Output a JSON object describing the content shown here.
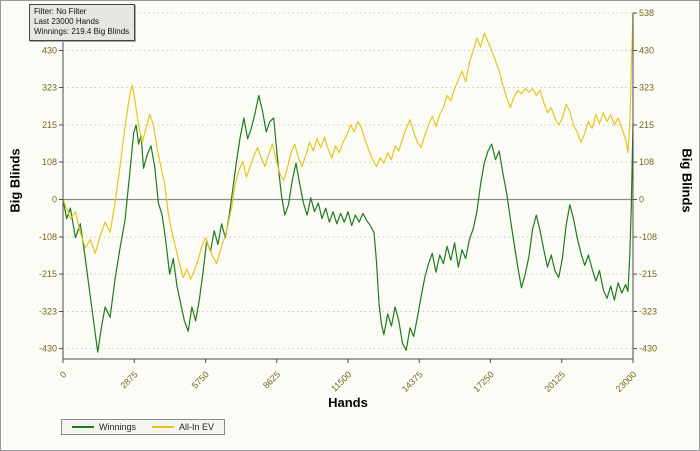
{
  "info_box": {
    "line1": "Filter: No Filter",
    "line2": "Last 23000 Hands",
    "line3": "Winnings: 219.4 Big Blinds"
  },
  "axes": {
    "left_title": "Big Blinds",
    "right_title": "Big Blinds",
    "x_title": "Hands"
  },
  "legend": {
    "items": [
      {
        "label": "Winnings",
        "color": "#1f7a1f"
      },
      {
        "label": "All-In EV",
        "color": "#e8c51d"
      }
    ]
  },
  "chart_data": {
    "type": "line",
    "title": "",
    "xlabel": "Hands",
    "ylabel": "Big Blinds",
    "xlim": [
      0,
      23000
    ],
    "ylim": [
      -460,
      538
    ],
    "x_ticks": [
      0,
      2875,
      5750,
      8625,
      11500,
      14375,
      17250,
      20125,
      23000
    ],
    "y_ticks_left": [
      430,
      323,
      215,
      108,
      0,
      -108,
      -215,
      -323,
      -430
    ],
    "y_ticks_right": [
      538,
      430,
      323,
      215,
      108,
      0,
      -108,
      -215,
      -323,
      -430
    ],
    "grid": "horizontal-dotted",
    "legend_position": "bottom-left",
    "colors": {
      "grid": "#c9c9c1",
      "zero_line": "#8a8a8a",
      "axis": "#4d4d4d",
      "tick_label": "#77661e"
    },
    "series": [
      {
        "name": "Winnings",
        "color": "#1f7a1f",
        "final_value": 219.4,
        "points": [
          [
            0,
            0
          ],
          [
            150,
            -55
          ],
          [
            300,
            -25
          ],
          [
            500,
            -110
          ],
          [
            700,
            -70
          ],
          [
            900,
            -170
          ],
          [
            1100,
            -280
          ],
          [
            1250,
            -360
          ],
          [
            1400,
            -440
          ],
          [
            1550,
            -370
          ],
          [
            1700,
            -310
          ],
          [
            1900,
            -340
          ],
          [
            2100,
            -230
          ],
          [
            2300,
            -140
          ],
          [
            2500,
            -60
          ],
          [
            2700,
            80
          ],
          [
            2850,
            190
          ],
          [
            2950,
            215
          ],
          [
            3050,
            160
          ],
          [
            3150,
            185
          ],
          [
            3250,
            90
          ],
          [
            3400,
            130
          ],
          [
            3550,
            155
          ],
          [
            3700,
            95
          ],
          [
            3850,
            -10
          ],
          [
            4000,
            -45
          ],
          [
            4150,
            -120
          ],
          [
            4300,
            -215
          ],
          [
            4450,
            -170
          ],
          [
            4600,
            -250
          ],
          [
            4750,
            -300
          ],
          [
            4900,
            -350
          ],
          [
            5050,
            -380
          ],
          [
            5200,
            -310
          ],
          [
            5350,
            -350
          ],
          [
            5500,
            -290
          ],
          [
            5650,
            -210
          ],
          [
            5800,
            -120
          ],
          [
            5950,
            -150
          ],
          [
            6100,
            -90
          ],
          [
            6250,
            -130
          ],
          [
            6400,
            -70
          ],
          [
            6550,
            -110
          ],
          [
            6700,
            -50
          ],
          [
            6850,
            30
          ],
          [
            7000,
            110
          ],
          [
            7150,
            180
          ],
          [
            7300,
            235
          ],
          [
            7450,
            175
          ],
          [
            7600,
            205
          ],
          [
            7750,
            250
          ],
          [
            7900,
            300
          ],
          [
            8050,
            255
          ],
          [
            8200,
            195
          ],
          [
            8350,
            225
          ],
          [
            8500,
            235
          ],
          [
            8650,
            120
          ],
          [
            8800,
            20
          ],
          [
            8950,
            -45
          ],
          [
            9100,
            -15
          ],
          [
            9250,
            55
          ],
          [
            9400,
            105
          ],
          [
            9550,
            45
          ],
          [
            9700,
            -10
          ],
          [
            9850,
            -45
          ],
          [
            10000,
            5
          ],
          [
            10150,
            -35
          ],
          [
            10300,
            -10
          ],
          [
            10450,
            -55
          ],
          [
            10600,
            -25
          ],
          [
            10750,
            -65
          ],
          [
            10900,
            -35
          ],
          [
            11050,
            -70
          ],
          [
            11200,
            -40
          ],
          [
            11350,
            -65
          ],
          [
            11500,
            -35
          ],
          [
            11650,
            -75
          ],
          [
            11800,
            -45
          ],
          [
            11950,
            -65
          ],
          [
            12100,
            -40
          ],
          [
            12250,
            -60
          ],
          [
            12400,
            -75
          ],
          [
            12550,
            -95
          ],
          [
            12650,
            -180
          ],
          [
            12750,
            -300
          ],
          [
            12850,
            -360
          ],
          [
            12950,
            -390
          ],
          [
            13100,
            -330
          ],
          [
            13250,
            -365
          ],
          [
            13400,
            -310
          ],
          [
            13550,
            -350
          ],
          [
            13700,
            -415
          ],
          [
            13850,
            -435
          ],
          [
            14000,
            -370
          ],
          [
            14150,
            -395
          ],
          [
            14300,
            -340
          ],
          [
            14450,
            -280
          ],
          [
            14600,
            -225
          ],
          [
            14750,
            -185
          ],
          [
            14900,
            -155
          ],
          [
            15050,
            -210
          ],
          [
            15200,
            -160
          ],
          [
            15350,
            -185
          ],
          [
            15500,
            -135
          ],
          [
            15650,
            -175
          ],
          [
            15800,
            -125
          ],
          [
            15950,
            -195
          ],
          [
            16100,
            -145
          ],
          [
            16250,
            -170
          ],
          [
            16400,
            -115
          ],
          [
            16550,
            -85
          ],
          [
            16700,
            -35
          ],
          [
            16850,
            45
          ],
          [
            17000,
            105
          ],
          [
            17150,
            140
          ],
          [
            17300,
            160
          ],
          [
            17450,
            115
          ],
          [
            17600,
            140
          ],
          [
            17750,
            75
          ],
          [
            17900,
            20
          ],
          [
            18050,
            -55
          ],
          [
            18200,
            -125
          ],
          [
            18350,
            -195
          ],
          [
            18500,
            -255
          ],
          [
            18650,
            -215
          ],
          [
            18800,
            -165
          ],
          [
            18950,
            -85
          ],
          [
            19100,
            -45
          ],
          [
            19250,
            -90
          ],
          [
            19400,
            -145
          ],
          [
            19550,
            -195
          ],
          [
            19700,
            -160
          ],
          [
            19850,
            -205
          ],
          [
            20000,
            -225
          ],
          [
            20150,
            -170
          ],
          [
            20300,
            -75
          ],
          [
            20450,
            -15
          ],
          [
            20600,
            -55
          ],
          [
            20750,
            -110
          ],
          [
            20900,
            -155
          ],
          [
            21050,
            -190
          ],
          [
            21200,
            -160
          ],
          [
            21350,
            -200
          ],
          [
            21500,
            -235
          ],
          [
            21650,
            -205
          ],
          [
            21800,
            -260
          ],
          [
            21950,
            -285
          ],
          [
            22100,
            -250
          ],
          [
            22250,
            -290
          ],
          [
            22400,
            -240
          ],
          [
            22550,
            -270
          ],
          [
            22700,
            -245
          ],
          [
            22800,
            -265
          ],
          [
            22870,
            -160
          ],
          [
            22930,
            -20
          ],
          [
            23000,
            219.4
          ]
        ]
      },
      {
        "name": "All-In EV",
        "color": "#e8c51d",
        "final_value": 538,
        "points": [
          [
            0,
            0
          ],
          [
            150,
            -25
          ],
          [
            300,
            -55
          ],
          [
            500,
            -35
          ],
          [
            700,
            -95
          ],
          [
            900,
            -140
          ],
          [
            1100,
            -115
          ],
          [
            1300,
            -155
          ],
          [
            1500,
            -105
          ],
          [
            1700,
            -65
          ],
          [
            1900,
            -95
          ],
          [
            2100,
            -10
          ],
          [
            2300,
            95
          ],
          [
            2500,
            210
          ],
          [
            2700,
            305
          ],
          [
            2800,
            330
          ],
          [
            2900,
            285
          ],
          [
            3050,
            215
          ],
          [
            3200,
            165
          ],
          [
            3350,
            205
          ],
          [
            3500,
            245
          ],
          [
            3650,
            215
          ],
          [
            3800,
            145
          ],
          [
            3950,
            95
          ],
          [
            4100,
            45
          ],
          [
            4250,
            -40
          ],
          [
            4400,
            -95
          ],
          [
            4550,
            -140
          ],
          [
            4700,
            -185
          ],
          [
            4850,
            -225
          ],
          [
            5000,
            -200
          ],
          [
            5150,
            -230
          ],
          [
            5300,
            -205
          ],
          [
            5450,
            -175
          ],
          [
            5600,
            -135
          ],
          [
            5750,
            -110
          ],
          [
            5900,
            -140
          ],
          [
            6050,
            -165
          ],
          [
            6200,
            -185
          ],
          [
            6350,
            -145
          ],
          [
            6500,
            -115
          ],
          [
            6650,
            -75
          ],
          [
            6800,
            -25
          ],
          [
            6950,
            45
          ],
          [
            7100,
            85
          ],
          [
            7250,
            110
          ],
          [
            7400,
            65
          ],
          [
            7550,
            95
          ],
          [
            7700,
            125
          ],
          [
            7850,
            150
          ],
          [
            8000,
            120
          ],
          [
            8150,
            95
          ],
          [
            8300,
            130
          ],
          [
            8450,
            160
          ],
          [
            8600,
            115
          ],
          [
            8750,
            75
          ],
          [
            8900,
            55
          ],
          [
            9050,
            90
          ],
          [
            9200,
            135
          ],
          [
            9350,
            160
          ],
          [
            9500,
            120
          ],
          [
            9650,
            95
          ],
          [
            9800,
            130
          ],
          [
            9950,
            165
          ],
          [
            10100,
            140
          ],
          [
            10250,
            175
          ],
          [
            10400,
            150
          ],
          [
            10550,
            180
          ],
          [
            10700,
            145
          ],
          [
            10850,
            120
          ],
          [
            11000,
            155
          ],
          [
            11150,
            135
          ],
          [
            11300,
            165
          ],
          [
            11450,
            185
          ],
          [
            11600,
            215
          ],
          [
            11750,
            195
          ],
          [
            11900,
            225
          ],
          [
            12050,
            205
          ],
          [
            12200,
            170
          ],
          [
            12350,
            140
          ],
          [
            12500,
            115
          ],
          [
            12650,
            95
          ],
          [
            12800,
            120
          ],
          [
            12950,
            105
          ],
          [
            13100,
            135
          ],
          [
            13250,
            115
          ],
          [
            13400,
            155
          ],
          [
            13550,
            140
          ],
          [
            13700,
            175
          ],
          [
            13850,
            205
          ],
          [
            14000,
            230
          ],
          [
            14150,
            195
          ],
          [
            14300,
            165
          ],
          [
            14450,
            150
          ],
          [
            14600,
            185
          ],
          [
            14750,
            215
          ],
          [
            14900,
            240
          ],
          [
            15050,
            210
          ],
          [
            15200,
            245
          ],
          [
            15350,
            265
          ],
          [
            15500,
            300
          ],
          [
            15650,
            285
          ],
          [
            15800,
            320
          ],
          [
            15950,
            345
          ],
          [
            16100,
            370
          ],
          [
            16250,
            340
          ],
          [
            16400,
            395
          ],
          [
            16550,
            430
          ],
          [
            16700,
            465
          ],
          [
            16850,
            440
          ],
          [
            17000,
            480
          ],
          [
            17150,
            455
          ],
          [
            17300,
            430
          ],
          [
            17450,
            400
          ],
          [
            17600,
            370
          ],
          [
            17750,
            330
          ],
          [
            17900,
            295
          ],
          [
            18050,
            265
          ],
          [
            18200,
            295
          ],
          [
            18350,
            315
          ],
          [
            18500,
            305
          ],
          [
            18650,
            320
          ],
          [
            18800,
            310
          ],
          [
            18950,
            320
          ],
          [
            19100,
            300
          ],
          [
            19250,
            315
          ],
          [
            19400,
            280
          ],
          [
            19550,
            250
          ],
          [
            19700,
            265
          ],
          [
            19850,
            235
          ],
          [
            20000,
            215
          ],
          [
            20150,
            235
          ],
          [
            20300,
            275
          ],
          [
            20450,
            255
          ],
          [
            20600,
            215
          ],
          [
            20750,
            195
          ],
          [
            20900,
            165
          ],
          [
            21050,
            190
          ],
          [
            21200,
            225
          ],
          [
            21350,
            205
          ],
          [
            21500,
            245
          ],
          [
            21650,
            220
          ],
          [
            21800,
            250
          ],
          [
            21950,
            225
          ],
          [
            22100,
            245
          ],
          [
            22250,
            215
          ],
          [
            22400,
            235
          ],
          [
            22550,
            205
          ],
          [
            22700,
            175
          ],
          [
            22800,
            135
          ],
          [
            22880,
            230
          ],
          [
            22940,
            400
          ],
          [
            23000,
            538
          ]
        ]
      }
    ]
  }
}
